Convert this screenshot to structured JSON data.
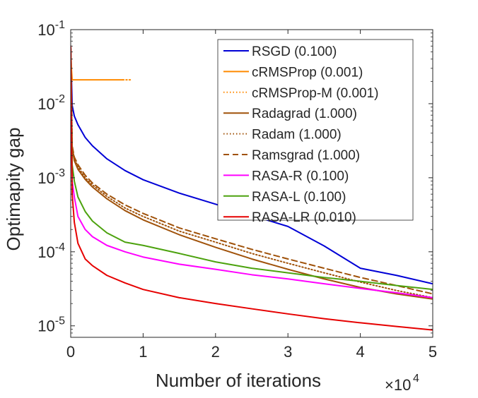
{
  "chart_data": {
    "type": "line",
    "xlabel": "Number of iterations",
    "ylabel": "Optimapity gap",
    "x_scale_label": {
      "base": "×10",
      "exponent": "4"
    },
    "xlim": [
      0,
      5
    ],
    "ylim": [
      7e-06,
      0.1
    ],
    "yscale": "log",
    "x_ticks": [
      0,
      1,
      2,
      3,
      4,
      5
    ],
    "x_tick_labels": [
      "0",
      "1",
      "2",
      "3",
      "4",
      "5"
    ],
    "y_ticks": [
      1e-05,
      0.0001,
      0.001,
      0.01,
      0.1
    ],
    "y_tick_labels": [
      {
        "base": "10",
        "exponent": "-5"
      },
      {
        "base": "10",
        "exponent": "-4"
      },
      {
        "base": "10",
        "exponent": "-3"
      },
      {
        "base": "10",
        "exponent": "-2"
      },
      {
        "base": "10",
        "exponent": "-1"
      }
    ],
    "grid": false,
    "legend_position": "top-right",
    "series": [
      {
        "name": "RSGD (0.100)",
        "color": "#0000d6",
        "dash": "solid",
        "x": [
          0,
          0.02,
          0.05,
          0.1,
          0.2,
          0.3,
          0.5,
          0.75,
          1,
          1.5,
          2,
          2.5,
          3,
          3.5,
          4,
          4.5,
          5
        ],
        "y": [
          0.06,
          0.0095,
          0.0068,
          0.0052,
          0.0035,
          0.0027,
          0.0018,
          0.00125,
          0.00094,
          0.00062,
          0.00044,
          0.00031,
          0.00022,
          0.00012,
          6e-05,
          4.8e-05,
          3.7e-05
        ]
      },
      {
        "name": "cRMSProp (0.001)",
        "color": "#ff8a00",
        "dash": "solid",
        "x": [
          0,
          0.01,
          0.02,
          0.05,
          0.2,
          0.4,
          0.6,
          0.72
        ],
        "y": [
          0.06,
          0.03,
          0.021,
          0.021,
          0.021,
          0.021,
          0.021,
          0.021
        ]
      },
      {
        "name": "cRMSProp-M (0.001)",
        "color": "#ff8a00",
        "dash": "dotted",
        "x": [
          0.72,
          0.8,
          0.85
        ],
        "y": [
          0.021,
          0.021,
          0.021
        ]
      },
      {
        "name": "Radagrad (1.000)",
        "color": "#a0520a",
        "dash": "solid",
        "x": [
          0,
          0.02,
          0.05,
          0.1,
          0.2,
          0.3,
          0.5,
          0.75,
          1,
          1.5,
          2,
          2.5,
          3,
          3.5,
          4,
          4.5,
          5
        ],
        "y": [
          0.06,
          0.0025,
          0.0017,
          0.0013,
          0.00095,
          0.00075,
          0.00052,
          0.00036,
          0.00027,
          0.00017,
          0.000115,
          8e-05,
          5.8e-05,
          4.3e-05,
          3.3e-05,
          2.7e-05,
          2.3e-05
        ]
      },
      {
        "name": "Radam (1.000)",
        "color": "#a0520a",
        "dash": "dotted",
        "x": [
          0,
          0.02,
          0.05,
          0.1,
          0.2,
          0.3,
          0.5,
          0.75,
          1,
          1.5,
          2,
          2.5,
          3,
          3.5,
          4,
          4.5,
          5
        ],
        "y": [
          0.06,
          0.0026,
          0.0018,
          0.0014,
          0.001,
          0.0008,
          0.00056,
          0.00039,
          0.0003,
          0.00019,
          0.000135,
          9.5e-05,
          7e-05,
          5.2e-05,
          3.9e-05,
          3e-05,
          2.4e-05
        ]
      },
      {
        "name": "Ramsgrad (1.000)",
        "color": "#a0520a",
        "dash": "dashed",
        "x": [
          0,
          0.02,
          0.05,
          0.1,
          0.2,
          0.3,
          0.5,
          0.75,
          1,
          1.5,
          2,
          2.5,
          3,
          3.5,
          4,
          4.5,
          5
        ],
        "y": [
          0.06,
          0.0027,
          0.0019,
          0.0015,
          0.00108,
          0.00085,
          0.0006,
          0.00043,
          0.00033,
          0.00021,
          0.00015,
          0.000108,
          8e-05,
          6e-05,
          4.5e-05,
          3.5e-05,
          2.7e-05
        ]
      },
      {
        "name": "RASA-R (0.100)",
        "color": "#ff00ff",
        "dash": "solid",
        "x": [
          0,
          0.02,
          0.05,
          0.1,
          0.2,
          0.3,
          0.5,
          0.75,
          1,
          1.5,
          2,
          2.5,
          3,
          3.5,
          4,
          4.5,
          5
        ],
        "y": [
          0.06,
          0.0009,
          0.00055,
          0.0003,
          0.0002,
          0.00016,
          0.000122,
          0.0001,
          8.5e-05,
          6.8e-05,
          5.8e-05,
          4.9e-05,
          4.3e-05,
          3.7e-05,
          3.2e-05,
          2.8e-05,
          2.4e-05
        ]
      },
      {
        "name": "RASA-L (0.100)",
        "color": "#4ca20e",
        "dash": "solid",
        "x": [
          0,
          0.02,
          0.05,
          0.1,
          0.2,
          0.3,
          0.5,
          0.75,
          1,
          1.5,
          2,
          2.5,
          3,
          3.5,
          4,
          4.5,
          5
        ],
        "y": [
          0.06,
          0.0015,
          0.0009,
          0.00055,
          0.00035,
          0.00026,
          0.00018,
          0.000135,
          0.000122,
          9.5e-05,
          7.3e-05,
          6e-05,
          5.2e-05,
          4.5e-05,
          4e-05,
          3.5e-05,
          3.1e-05
        ]
      },
      {
        "name": "RASA-LR (0.010)",
        "color": "#e60000",
        "dash": "solid",
        "x": [
          0,
          0.02,
          0.05,
          0.1,
          0.2,
          0.3,
          0.5,
          0.75,
          1,
          1.5,
          2,
          2.5,
          3,
          3.5,
          4,
          4.5,
          5
        ],
        "y": [
          0.06,
          0.0006,
          0.00025,
          0.00013,
          8e-05,
          6.5e-05,
          4.8e-05,
          3.8e-05,
          3.1e-05,
          2.4e-05,
          2e-05,
          1.7e-05,
          1.45e-05,
          1.25e-05,
          1.1e-05,
          9.8e-06,
          8.8e-06
        ]
      }
    ]
  }
}
